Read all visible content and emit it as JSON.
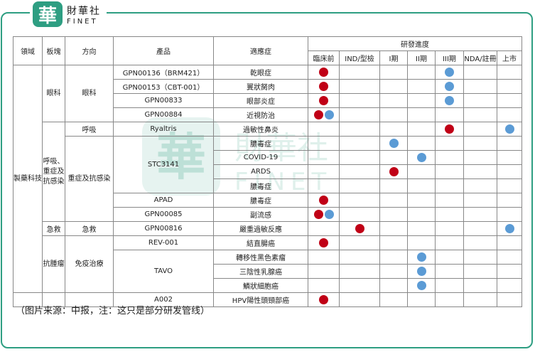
{
  "logo": {
    "mark": "華",
    "name_cn": "財華社",
    "name_en": "FINET"
  },
  "headers": {
    "domain": "領域",
    "sector": "板塊",
    "direction": "方向",
    "product": "產品",
    "indication": "適應症",
    "progress": "研發進度",
    "stages": [
      "臨床前",
      "IND/型檢",
      "I期",
      "II期",
      "III期",
      "NDA/註冊",
      "上市"
    ]
  },
  "domain_label": "製藥科技",
  "sectors": {
    "ophthalmology": "眼科",
    "respiratory": "呼吸、重症及抗感染",
    "emergency": "急救",
    "oncology": "抗腫瘤"
  },
  "directions": {
    "ophthalmology": "眼科",
    "respiratory": "呼吸",
    "critical": "重症及抗感染",
    "emergency": "急救",
    "immunotherapy": "免疫治療"
  },
  "products": {
    "p1": "GPN00136（BRM421）",
    "p2": "GPN00153（CBT-001）",
    "p3": "GPN00833",
    "p4": "GPN00884",
    "p5": "Ryaltris",
    "p6": "STC3141",
    "p7": "APAD",
    "p8": "GPN00085",
    "p9": "GPN00816",
    "p10": "REV-001",
    "p11": "TAVO",
    "p12": "A002"
  },
  "indications": [
    "乾眼症",
    "翼狀胬肉",
    "眼部炎症",
    "近視防治",
    "過敏性鼻炎",
    "膿毒症",
    "COVID-19",
    "ARDS",
    "膿毒症",
    "副流感",
    "嚴重過敏反應",
    "結直腸癌",
    "轉移性黑色素瘤",
    "三陰性乳腺癌",
    "鱗狀細胞癌",
    "HPV陽性頭頸部癌"
  ],
  "marker_colors": {
    "red": "#c00016",
    "blue": "#5b9bd5"
  },
  "caption": "（图片来源：中报，注：这只是部分研发管线）"
}
